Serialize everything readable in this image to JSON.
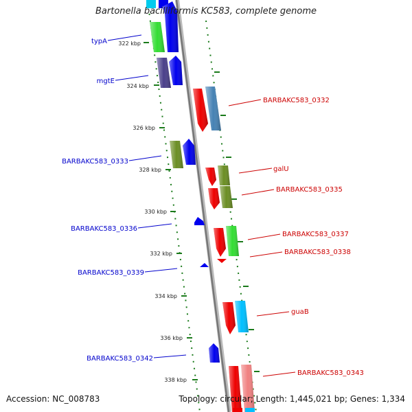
{
  "title": "Bartonella bacilliformis KC583, complete genome",
  "accession_text": "Accession: NC_008783",
  "summary_text": "Topology: circular; Length: 1,445,021 bp; Genes: 1,334",
  "colors": {
    "forward_label": "#0000cc",
    "reverse_label": "#cc0000",
    "tick": "#1a7a1a",
    "backbone": "#888888"
  },
  "kbp_ticks": [
    "322 kbp",
    "324 kbp",
    "326 kbp",
    "328 kbp",
    "330 kbp",
    "332 kbp",
    "334 kbp",
    "336 kbp",
    "338 kbp"
  ],
  "forward_genes": [
    {
      "label": "typA",
      "color": "#33dd33"
    },
    {
      "label": "mgtE",
      "color": "#4a3f8a"
    },
    {
      "label": "BARBAKC583_0333",
      "color": "#6b8e23"
    },
    {
      "label": "BARBAKC583_0336",
      "color": "#0000ee"
    },
    {
      "label": "BARBAKC583_0339",
      "color": "#0000ee"
    },
    {
      "label": "BARBAKC583_0342",
      "color": "#0000ee"
    }
  ],
  "reverse_genes": [
    {
      "label": "BARBAKC583_0332",
      "color": "#4682b4"
    },
    {
      "label": "galU",
      "color": "#6b8e23"
    },
    {
      "label": "BARBAKC583_0335",
      "color": "#6b8e23"
    },
    {
      "label": "BARBAKC583_0337",
      "color": "#33dd33"
    },
    {
      "label": "BARBAKC583_0338",
      "color": "#ee0000"
    },
    {
      "label": "guaB",
      "color": "#00bfff"
    },
    {
      "label": "BARBAKC583_0343",
      "color": "#f08080"
    }
  ]
}
